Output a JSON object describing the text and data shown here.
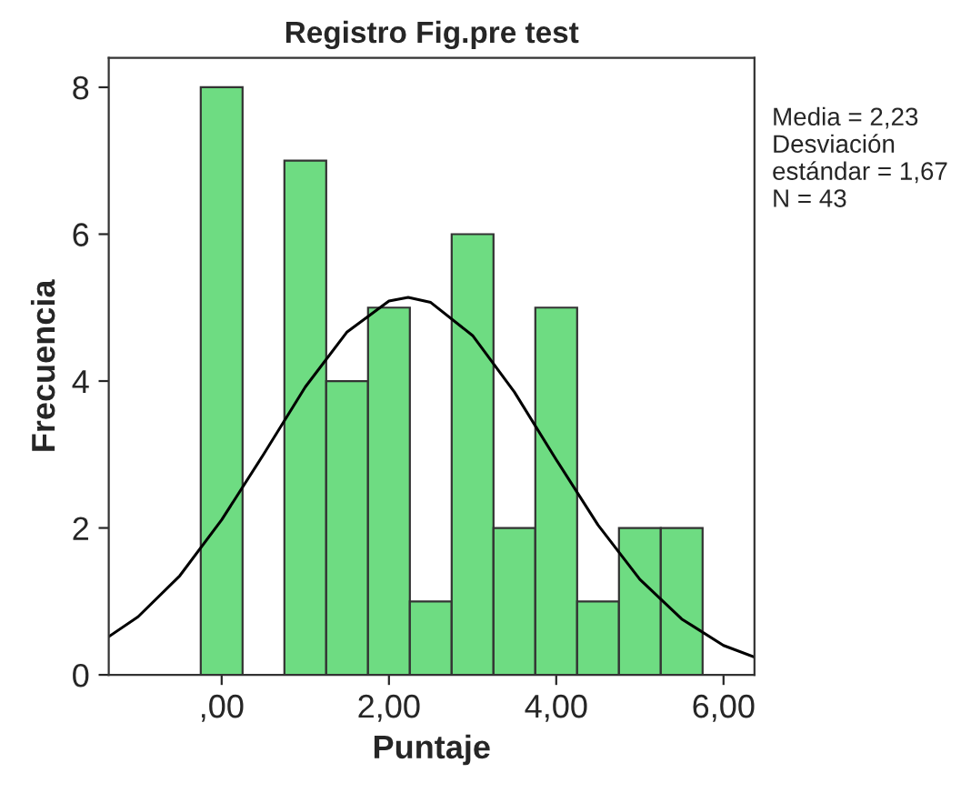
{
  "chart_data": {
    "type": "histogram",
    "title": "Registro Fig.pre test",
    "xlabel": "Puntaje",
    "ylabel": "Frecuencia",
    "bins": [
      -0.25,
      0.25,
      0.75,
      1.25,
      1.75,
      2.25,
      2.75,
      3.25,
      3.75,
      4.25,
      4.75,
      5.25,
      5.75
    ],
    "values": [
      8,
      0,
      7,
      4,
      5,
      1,
      6,
      2,
      5,
      1,
      2,
      2
    ],
    "color": "#6edc82",
    "series": [
      {
        "type": "line",
        "color": "#000000",
        "x": [
          -1.35,
          -1,
          -0.5,
          0,
          0.5,
          1,
          1.5,
          2,
          2.23,
          2.5,
          3,
          3.5,
          4,
          4.5,
          5,
          5.5,
          6,
          6.37
        ],
        "values": [
          0.52,
          0.79,
          1.35,
          2.11,
          3.0,
          3.92,
          4.67,
          5.09,
          5.14,
          5.07,
          4.62,
          3.85,
          2.93,
          2.04,
          1.3,
          0.76,
          0.4,
          0.24
        ]
      }
    ],
    "xlim": [
      -1.35,
      6.37
    ],
    "xticks": [
      {
        "value": 0,
        "label": ",00"
      },
      {
        "value": 2,
        "label": "2,00"
      },
      {
        "value": 4,
        "label": "4,00"
      },
      {
        "value": 6,
        "label": "6,00"
      }
    ],
    "ylim": [
      0,
      8.4
    ],
    "yticks": [
      0,
      2,
      4,
      6,
      8
    ],
    "grid": false,
    "annotations": [
      "Media = 2,23",
      "Desviación\nestándar = 1,67",
      "N = 43"
    ]
  }
}
